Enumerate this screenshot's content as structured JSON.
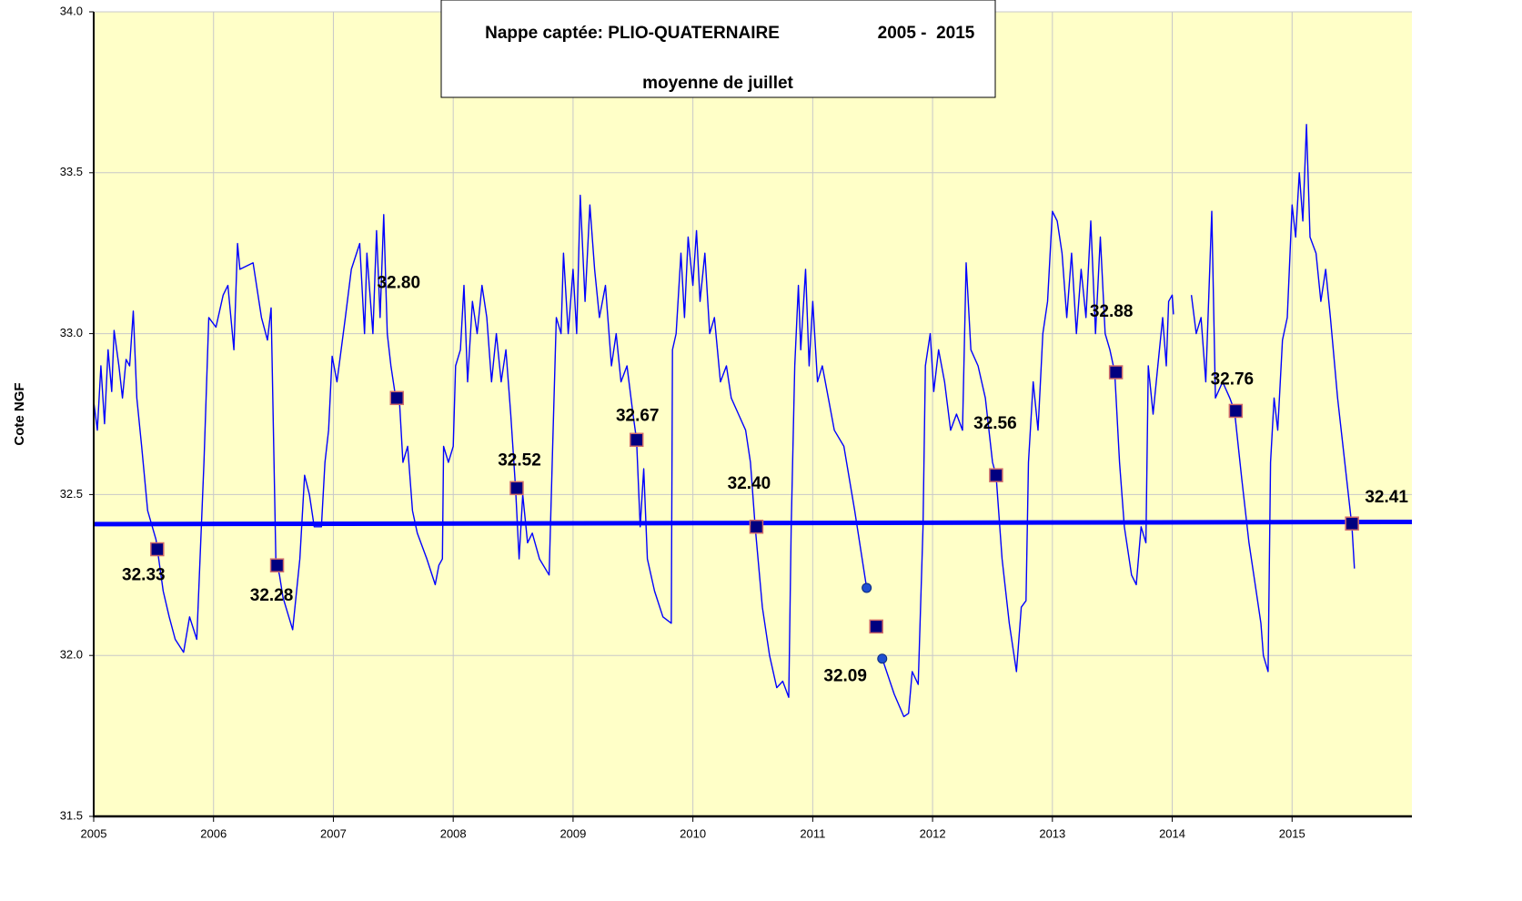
{
  "chart_data": {
    "type": "line",
    "title": "Nappe captée: PLIO-QUATERNAIRE",
    "period": "2005 -  2015",
    "subtitle": "moyenne de juillet",
    "y_label": "Cote NGF",
    "xlim": [
      2005,
      2016
    ],
    "xticks": [
      2005,
      2006,
      2007,
      2008,
      2009,
      2010,
      2011,
      2012,
      2013,
      2014,
      2015
    ],
    "ylim": [
      31.5,
      34.0
    ],
    "yticks": [
      {
        "value": 31.5,
        "label": "31.5"
      },
      {
        "value": 32.0,
        "label": "32.0"
      },
      {
        "value": 32.5,
        "label": "32.5"
      },
      {
        "value": 33.0,
        "label": "33.0"
      },
      {
        "value": 33.5,
        "label": "33.5"
      },
      {
        "value": 34.0,
        "label": "34.0"
      }
    ],
    "grid": true,
    "line": {
      "color": "#0000ff",
      "x": [
        2005.0,
        2005.03,
        2005.06,
        2005.09,
        2005.12,
        2005.15,
        2005.17,
        2005.21,
        2005.24,
        2005.27,
        2005.3,
        2005.33,
        2005.36,
        2005.4,
        2005.45,
        2005.52,
        2005.58,
        2005.63,
        2005.68,
        2005.75,
        2005.8,
        2005.86,
        2005.92,
        2005.96,
        2006.02,
        2006.08,
        2006.12,
        2006.17,
        2006.2,
        2006.22,
        2006.33,
        2006.4,
        2006.45,
        2006.48,
        2006.52,
        2006.55,
        2006.58,
        2006.66,
        2006.72,
        2006.76,
        2006.8,
        2006.84,
        2006.9,
        2006.93,
        2006.96,
        2006.99,
        2007.03,
        2007.1,
        2007.15,
        2007.22,
        2007.26,
        2007.28,
        2007.33,
        2007.36,
        2007.39,
        2007.42,
        2007.45,
        2007.48,
        2007.52,
        2007.55,
        2007.58,
        2007.62,
        2007.66,
        2007.7,
        2007.78,
        2007.85,
        2007.88,
        2007.91,
        2007.92,
        2007.96,
        2008.0,
        2008.02,
        2008.06,
        2008.09,
        2008.12,
        2008.16,
        2008.2,
        2008.24,
        2008.28,
        2008.32,
        2008.36,
        2008.4,
        2008.44,
        2008.48,
        2008.52,
        2008.55,
        2008.58,
        2008.62,
        2008.66,
        2008.72,
        2008.8,
        2008.83,
        2008.86,
        2008.9,
        2008.92,
        2008.96,
        2009.0,
        2009.03,
        2009.06,
        2009.1,
        2009.14,
        2009.18,
        2009.22,
        2009.27,
        2009.32,
        2009.36,
        2009.4,
        2009.45,
        2009.5,
        2009.53,
        2009.56,
        2009.59,
        2009.62,
        2009.68,
        2009.75,
        2009.82,
        2009.83,
        2009.86,
        2009.9,
        2009.93,
        2009.96,
        2010.0,
        2010.03,
        2010.06,
        2010.1,
        2010.14,
        2010.18,
        2010.23,
        2010.28,
        2010.32,
        2010.38,
        2010.44,
        2010.48,
        2010.52,
        2010.58,
        2010.64,
        2010.7,
        2010.75,
        2010.8,
        2010.82,
        2010.85,
        2010.88,
        2010.9,
        2010.94,
        2010.97,
        2011.0,
        2011.04,
        2011.08,
        2011.13,
        2011.18,
        2011.26,
        2011.35,
        2011.45,
        2011.52,
        2011.58,
        2011.68,
        2011.76,
        2011.8,
        2011.83,
        2011.88,
        2011.92,
        2011.94,
        2011.98,
        2012.01,
        2012.05,
        2012.1,
        2012.15,
        2012.2,
        2012.25,
        2012.28,
        2012.32,
        2012.38,
        2012.44,
        2012.5,
        2012.53,
        2012.58,
        2012.64,
        2012.7,
        2012.74,
        2012.78,
        2012.8,
        2012.84,
        2012.88,
        2012.92,
        2012.96,
        2013.0,
        2013.04,
        2013.08,
        2013.12,
        2013.16,
        2013.2,
        2013.24,
        2013.28,
        2013.32,
        2013.36,
        2013.4,
        2013.44,
        2013.48,
        2013.52,
        2013.56,
        2013.6,
        2013.66,
        2013.7,
        2013.74,
        2013.78,
        2013.8,
        2013.84,
        2013.88,
        2013.92,
        2013.95,
        2013.97,
        2014.0,
        2014.01,
        2014.08,
        2014.16,
        2014.2,
        2014.24,
        2014.28,
        2014.33,
        2014.36,
        2014.42,
        2014.48,
        2014.52,
        2014.58,
        2014.64,
        2014.7,
        2014.74,
        2014.76,
        2014.8,
        2014.82,
        2014.85,
        2014.88,
        2014.92,
        2014.96,
        2015.0,
        2015.03,
        2015.06,
        2015.09,
        2015.12,
        2015.15,
        2015.2,
        2015.24,
        2015.28,
        2015.32,
        2015.38,
        2015.44,
        2015.5,
        2015.52
      ],
      "values": [
        32.79,
        32.7,
        32.9,
        32.72,
        32.95,
        32.82,
        33.01,
        32.9,
        32.8,
        32.92,
        32.9,
        33.07,
        32.8,
        32.65,
        32.45,
        32.36,
        32.2,
        32.12,
        32.05,
        32.01,
        32.12,
        32.05,
        32.6,
        33.05,
        33.02,
        33.12,
        33.15,
        32.95,
        33.28,
        33.2,
        33.22,
        33.05,
        32.98,
        33.08,
        32.3,
        32.25,
        32.18,
        32.08,
        32.3,
        32.56,
        32.5,
        32.4,
        32.4,
        32.6,
        32.7,
        32.93,
        32.85,
        33.05,
        33.2,
        33.28,
        33.0,
        33.25,
        33.0,
        33.32,
        33.05,
        33.37,
        33.0,
        32.9,
        32.8,
        32.8,
        32.6,
        32.65,
        32.45,
        32.38,
        32.3,
        32.22,
        32.28,
        32.3,
        32.65,
        32.6,
        32.65,
        32.9,
        32.95,
        33.15,
        32.85,
        33.1,
        33.0,
        33.15,
        33.05,
        32.85,
        33.0,
        32.85,
        32.95,
        32.75,
        32.52,
        32.3,
        32.5,
        32.35,
        32.38,
        32.3,
        32.25,
        32.65,
        33.05,
        33.0,
        33.25,
        33.0,
        33.2,
        33.0,
        33.43,
        33.1,
        33.4,
        33.2,
        33.05,
        33.15,
        32.9,
        33.0,
        32.85,
        32.9,
        32.75,
        32.67,
        32.4,
        32.58,
        32.3,
        32.2,
        32.12,
        32.1,
        32.95,
        33.0,
        33.25,
        33.05,
        33.3,
        33.15,
        33.32,
        33.1,
        33.25,
        33.0,
        33.05,
        32.85,
        32.9,
        32.8,
        32.75,
        32.7,
        32.6,
        32.4,
        32.15,
        32.0,
        31.9,
        31.92,
        31.87,
        32.4,
        32.9,
        33.15,
        32.95,
        33.2,
        32.9,
        33.1,
        32.85,
        32.9,
        32.8,
        32.7,
        32.65,
        32.45,
        32.21,
        null,
        31.99,
        31.88,
        31.81,
        31.82,
        31.95,
        31.91,
        32.4,
        32.9,
        33.0,
        32.82,
        32.95,
        32.85,
        32.7,
        32.75,
        32.7,
        33.22,
        32.95,
        32.9,
        32.8,
        32.6,
        32.56,
        32.3,
        32.1,
        31.95,
        32.15,
        32.17,
        32.6,
        32.85,
        32.7,
        33.0,
        33.1,
        33.38,
        33.35,
        33.25,
        33.05,
        33.25,
        33.0,
        33.2,
        33.05,
        33.35,
        33.0,
        33.3,
        33.0,
        32.95,
        32.88,
        32.6,
        32.4,
        32.25,
        32.22,
        32.4,
        32.35,
        32.9,
        32.75,
        32.9,
        33.05,
        32.9,
        33.1,
        33.12,
        33.06,
        null,
        33.12,
        33.0,
        33.05,
        32.85,
        33.38,
        32.8,
        32.85,
        32.8,
        32.76,
        32.55,
        32.35,
        32.2,
        32.1,
        32.0,
        31.95,
        32.6,
        32.8,
        32.7,
        32.98,
        33.05,
        33.4,
        33.3,
        33.5,
        33.35,
        33.65,
        33.3,
        33.25,
        33.1,
        33.2,
        33.05,
        32.8,
        32.6,
        32.4,
        32.27
      ]
    },
    "july_means": {
      "color": "#000080",
      "x": [
        2005.53,
        2006.53,
        2007.53,
        2008.53,
        2009.53,
        2010.53,
        2011.53,
        2012.53,
        2013.53,
        2014.53,
        2015.5
      ],
      "values": [
        32.33,
        32.28,
        32.8,
        32.52,
        32.67,
        32.4,
        32.09,
        32.56,
        32.88,
        32.76,
        32.41
      ],
      "value_labels": [
        "32.33",
        "32.28",
        "32.80",
        "32.52",
        "32.67",
        "32.40",
        "32.09",
        "32.56",
        "32.88",
        "32.76",
        "32.41"
      ]
    },
    "trend": {
      "color": "#0000ff",
      "x": [
        2005,
        2016
      ],
      "values": [
        32.408,
        32.415
      ]
    },
    "points": {
      "color": "#1f4fd0",
      "x": [
        2011.45,
        2011.58
      ],
      "values": [
        32.21,
        31.99
      ]
    }
  }
}
